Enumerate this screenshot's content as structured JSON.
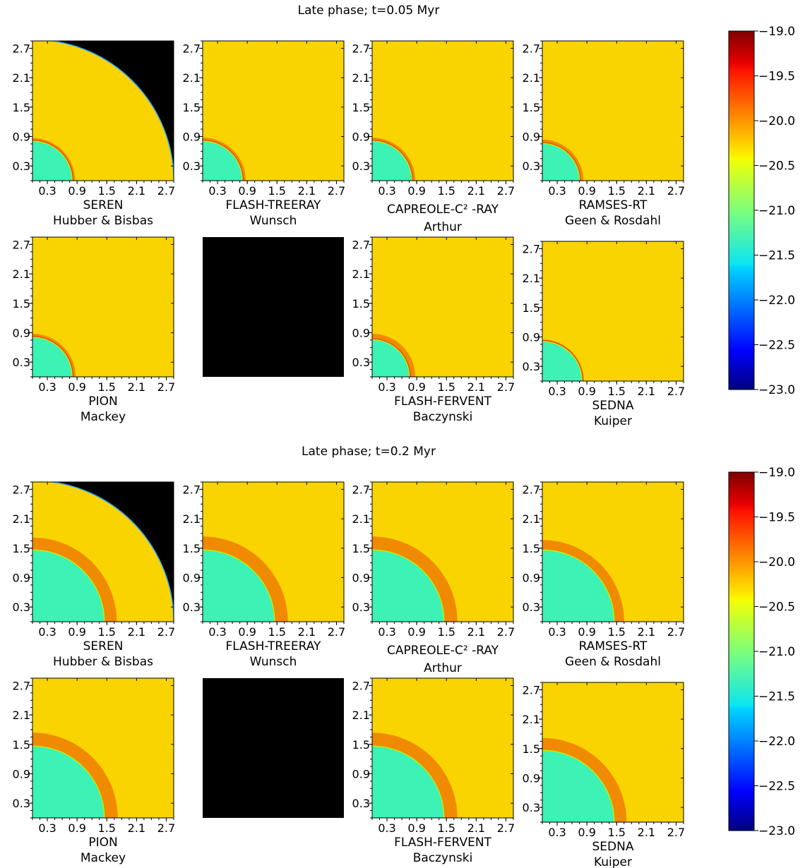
{
  "figure": {
    "colormap": "jet",
    "background_outside_grid": "#000000",
    "shell_color": "#f08a00",
    "ambient_color": "#fad400",
    "ionized_color": "#3cf2b4",
    "empty_panel_color": "#000000"
  },
  "chart_data": [
    {
      "type": "heatmap",
      "title": "Late phase; t=0.05 Myr",
      "tick_labels": [
        "0.3",
        "0.9",
        "1.5",
        "2.1",
        "2.7"
      ],
      "axis_range": [
        0,
        2.85
      ],
      "colorbar": {
        "range": [
          -23.0,
          -19.0
        ],
        "ticks": [
          "-19.0",
          "-19.5",
          "-20.0",
          "-20.5",
          "-21.0",
          "-21.5",
          "-22.0",
          "-22.5",
          "-23.0"
        ]
      },
      "panels": [
        {
          "code": "SEREN",
          "authors": "Hubber & Bisbas",
          "front_radius": 0.8,
          "shell_width": 0.06,
          "grid_radius": 2.85
        },
        {
          "code": "FLASH-TREERAY",
          "authors": "Wunsch",
          "front_radius": 0.8,
          "shell_width": 0.07
        },
        {
          "code": "CAPREOLE-C² -RAY",
          "authors": "Arthur",
          "front_radius": 0.8,
          "shell_width": 0.07
        },
        {
          "code": "RAMSES-RT",
          "authors": "Geen & Rosdahl",
          "front_radius": 0.75,
          "shell_width": 0.08
        },
        {
          "code": "PION",
          "authors": "Mackey",
          "front_radius": 0.8,
          "shell_width": 0.07
        },
        {
          "code": "",
          "authors": "",
          "empty": true
        },
        {
          "code": "FLASH-FERVENT",
          "authors": "Baczynski",
          "front_radius": 0.75,
          "shell_width": 0.12
        },
        {
          "code": "SEDNA",
          "authors": "Kuiper",
          "front_radius": 0.8,
          "shell_width": 0.04
        }
      ]
    },
    {
      "type": "heatmap",
      "title": "Late phase; t=0.2 Myr",
      "tick_labels": [
        "0.3",
        "0.9",
        "1.5",
        "2.1",
        "2.7"
      ],
      "axis_range": [
        0,
        2.85
      ],
      "colorbar": {
        "range": [
          -23.0,
          -19.0
        ],
        "ticks": [
          "-19.0",
          "-19.5",
          "-20.0",
          "-20.5",
          "-21.0",
          "-21.5",
          "-22.0",
          "-22.5",
          "-23.0"
        ]
      },
      "panels": [
        {
          "code": "SEREN",
          "authors": "Hubber & Bisbas",
          "front_radius": 1.45,
          "shell_width": 0.25,
          "grid_radius": 2.85
        },
        {
          "code": "FLASH-TREERAY",
          "authors": "Wunsch",
          "front_radius": 1.45,
          "shell_width": 0.27
        },
        {
          "code": "CAPREOLE-C² -RAY",
          "authors": "Arthur",
          "front_radius": 1.45,
          "shell_width": 0.27
        },
        {
          "code": "RAMSES-RT",
          "authors": "Geen & Rosdahl",
          "front_radius": 1.45,
          "shell_width": 0.2
        },
        {
          "code": "PION",
          "authors": "Mackey",
          "front_radius": 1.45,
          "shell_width": 0.27
        },
        {
          "code": "",
          "authors": "",
          "empty": true
        },
        {
          "code": "FLASH-FERVENT",
          "authors": "Baczynski",
          "front_radius": 1.45,
          "shell_width": 0.27
        },
        {
          "code": "SEDNA",
          "authors": "Kuiper",
          "front_radius": 1.45,
          "shell_width": 0.25
        }
      ]
    }
  ]
}
